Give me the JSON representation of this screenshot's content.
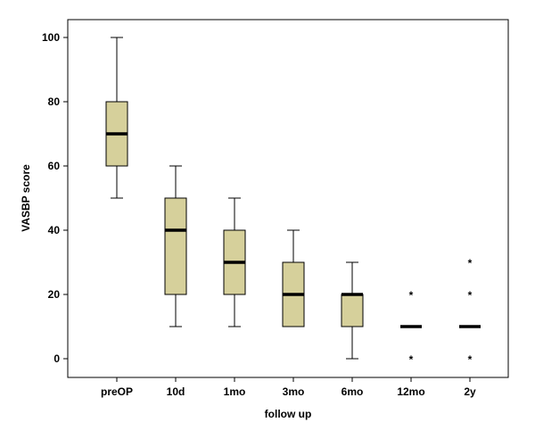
{
  "chart_data": {
    "type": "box",
    "title": "",
    "xlabel": "follow up",
    "ylabel": "VASBP score",
    "ylim": [
      -6,
      108
    ],
    "yticks": [
      0,
      20,
      40,
      60,
      80,
      100
    ],
    "grid": false,
    "box_color": "#d6d09b",
    "categories": [
      "preOP",
      "10d",
      "1mo",
      "3mo",
      "6mo",
      "12mo",
      "2y"
    ],
    "boxes": [
      {
        "category": "preOP",
        "whisker_low": 50,
        "q1": 60,
        "median": 70,
        "q3": 80,
        "whisker_high": 100,
        "outliers": []
      },
      {
        "category": "10d",
        "whisker_low": 10,
        "q1": 20,
        "median": 40,
        "q3": 50,
        "whisker_high": 60,
        "outliers": []
      },
      {
        "category": "1mo",
        "whisker_low": 10,
        "q1": 20,
        "median": 30,
        "q3": 40,
        "whisker_high": 50,
        "outliers": []
      },
      {
        "category": "3mo",
        "whisker_low": 10,
        "q1": 10,
        "median": 20,
        "q3": 30,
        "whisker_high": 40,
        "outliers": []
      },
      {
        "category": "6mo",
        "whisker_low": 0,
        "q1": 10,
        "median": 20,
        "q3": 20,
        "whisker_high": 30,
        "outliers": []
      },
      {
        "category": "12mo",
        "whisker_low": 10,
        "q1": 10,
        "median": 10,
        "q3": 10,
        "whisker_high": 10,
        "outliers": [
          0,
          20
        ]
      },
      {
        "category": "2y",
        "whisker_low": 10,
        "q1": 10,
        "median": 10,
        "q3": 10,
        "whisker_high": 10,
        "outliers": [
          0,
          20,
          30
        ]
      }
    ]
  }
}
